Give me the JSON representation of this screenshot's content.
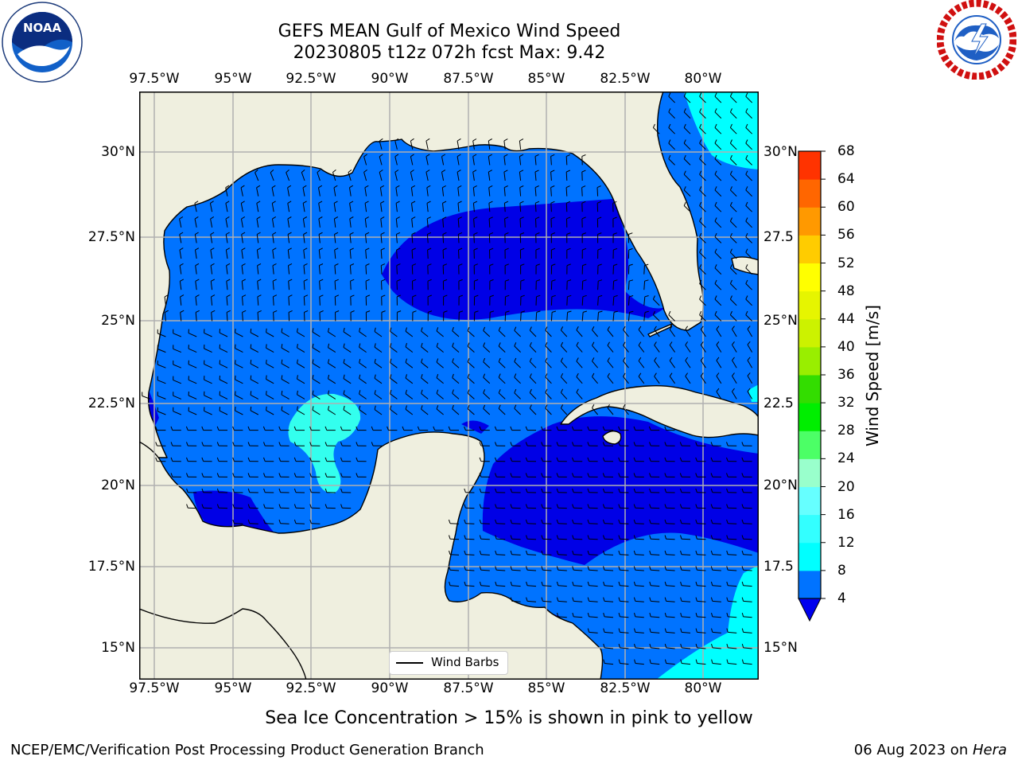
{
  "title_line1": "GEFS MEAN Gulf of Mexico Wind Speed",
  "title_line2": "20230805 t12z 072h fcst   Max: 9.42",
  "longitude_labels": [
    "97.5°W",
    "95°W",
    "92.5°W",
    "90°W",
    "87.5°W",
    "85°W",
    "82.5°W",
    "80°W"
  ],
  "latitude_labels_left": [
    "30°N",
    "27.5°N",
    "25°N",
    "22.5°N",
    "20°N",
    "17.5°N",
    "15°N"
  ],
  "latitude_labels_right": [
    "30°N",
    "27.5",
    "25°N",
    "22.5",
    "20°N",
    "17.5",
    "15°N"
  ],
  "map_extent": {
    "lon_min": -98.0,
    "lon_max": -78.2,
    "lat_min": 14.0,
    "lat_max": 31.8
  },
  "colorbar": {
    "title": "Wind Speed [m/s]",
    "levels": [
      4,
      8,
      12,
      16,
      20,
      24,
      28,
      32,
      36,
      40,
      44,
      48,
      52,
      56,
      60,
      64,
      68
    ],
    "below_min_color": "#0000ee",
    "colors": [
      "#0073ff",
      "#00ffff",
      "#33ffff",
      "#66ffff",
      "#99ffcc",
      "#4cff66",
      "#00ee00",
      "#33dd00",
      "#99ee00",
      "#ccf200",
      "#e6f500",
      "#ffff00",
      "#ffcc00",
      "#ff9900",
      "#ff6600",
      "#ff3300",
      "#ff0000"
    ]
  },
  "colors": {
    "land": "#efefdf",
    "speed_lt4": "#0000e6",
    "speed_4_8": "#0073ff",
    "speed_8_12": "#00ffff",
    "speed_12_16": "#33ffee",
    "gridline": "#b0b0b0"
  },
  "legend_label": "Wind Barbs",
  "footer_note": "Sea Ice Concentration > 15% is shown in pink to yellow",
  "footer_left": "NCEP/EMC/Verification Post Processing Product Generation Branch",
  "footer_date": "06 Aug 2023 on ",
  "footer_machine": "Hera",
  "logos": {
    "left": "noaa-logo",
    "right": "national-weather-service-logo"
  }
}
